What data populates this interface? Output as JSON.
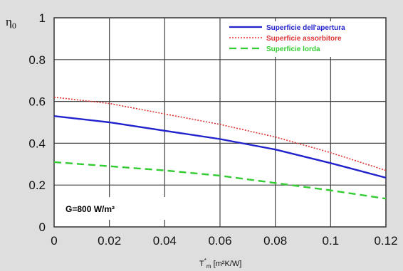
{
  "chart_data": {
    "type": "line",
    "ylabel": "η",
    "ylabel_sub": "0",
    "xlabel": "T",
    "xlabel_sub": "m",
    "xlabel_sup": "*",
    "xlabel_units": " [m²K/W]",
    "annotation": "G=800 W/m²",
    "xlim": [
      0,
      0.12
    ],
    "ylim": [
      0,
      1
    ],
    "x_ticks": [
      "0",
      "0.02",
      "0.04",
      "0.06",
      "0.08",
      "0.1",
      "0.12"
    ],
    "y_ticks": [
      "0",
      "0.2",
      "0.4",
      "0.6",
      "0.8",
      "1"
    ],
    "grid": true,
    "legend_position": "top-right",
    "x": [
      0,
      0.02,
      0.04,
      0.06,
      0.08,
      0.1,
      0.12
    ],
    "series": [
      {
        "name": "Superficie dell'apertura",
        "color": "#2222cc",
        "style": "solid",
        "values": [
          0.53,
          0.5,
          0.46,
          0.42,
          0.37,
          0.305,
          0.235
        ]
      },
      {
        "name": "Superficie assorbitore",
        "color": "#dd3333",
        "style": "dotted",
        "values": [
          0.62,
          0.59,
          0.54,
          0.49,
          0.43,
          0.355,
          0.27
        ]
      },
      {
        "name": "Superficie lorda",
        "color": "#33cc33",
        "style": "dashed",
        "values": [
          0.31,
          0.29,
          0.27,
          0.245,
          0.21,
          0.175,
          0.135
        ]
      }
    ]
  }
}
